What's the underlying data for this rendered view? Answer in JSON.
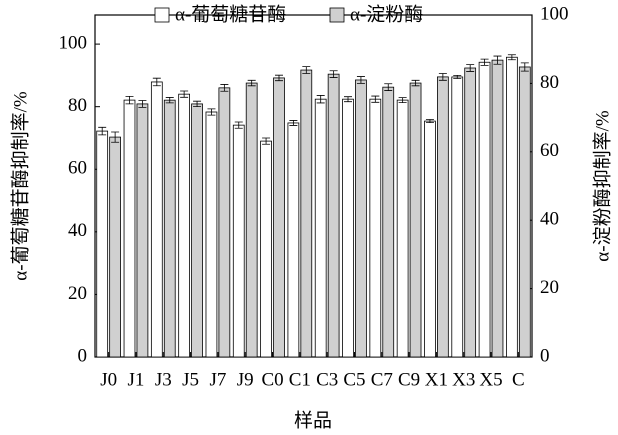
{
  "chart_data": {
    "type": "bar",
    "x_label": "样品",
    "y_label": "α-葡萄糖苷酶抑制率/%",
    "y2_label": "α-淀粉酶抑制率/%",
    "categories": [
      "J0",
      "J1",
      "J3",
      "J5",
      "J7",
      "J9",
      "C0",
      "C1",
      "C3",
      "C5",
      "C7",
      "C9",
      "X1",
      "X3",
      "X5",
      "C"
    ],
    "series": [
      {
        "name": "α-葡萄糖苷酶",
        "color": "#ffffff",
        "values": [
          72.2,
          82.1,
          87.9,
          84.0,
          78.3,
          74.1,
          69.0,
          74.8,
          82.4,
          82.4,
          82.4,
          82.1,
          75.4,
          89.5,
          94.2,
          95.8
        ],
        "errors": [
          1.2,
          1.2,
          1.2,
          1.0,
          1.0,
          1.0,
          1.0,
          0.8,
          1.2,
          0.8,
          1.0,
          0.8,
          0.5,
          0.5,
          1.0,
          0.8
        ]
      },
      {
        "name": "α-淀粉酶",
        "color": "#d0d0d0",
        "axis": "y2",
        "values": [
          64.3,
          74.0,
          75.1,
          74.0,
          78.7,
          80.1,
          81.6,
          83.9,
          82.7,
          81.0,
          78.9,
          80.1,
          81.9,
          84.5,
          86.8,
          84.8
        ],
        "errors": [
          1.5,
          1.0,
          0.8,
          0.8,
          1.0,
          0.8,
          0.8,
          1.0,
          1.0,
          1.0,
          1.0,
          0.8,
          1.0,
          1.0,
          1.2,
          1.2
        ]
      }
    ],
    "ylim": [
      0,
      109.3
    ],
    "yticks": [
      0,
      20,
      40,
      60,
      80,
      100
    ],
    "y2lim": [
      0,
      100
    ],
    "y2ticks": [
      0,
      20,
      40,
      60,
      80,
      100
    ]
  }
}
